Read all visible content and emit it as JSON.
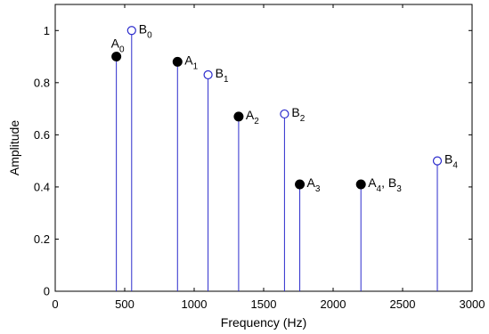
{
  "chart_data": {
    "type": "stem",
    "xlabel": "Frequency (Hz)",
    "ylabel": "Amplitude",
    "xlim": [
      0,
      3000
    ],
    "ylim": [
      0,
      1.1
    ],
    "xticks": [
      0,
      500,
      1000,
      1500,
      2000,
      2500,
      3000
    ],
    "yticks": [
      0,
      0.2,
      0.4,
      0.6,
      0.8,
      1
    ],
    "xtick_labels": [
      "0",
      "500",
      "1000",
      "1500",
      "2000",
      "2500",
      "3000"
    ],
    "ytick_labels": [
      "0",
      "0.2",
      "0.4",
      "0.6",
      "0.8",
      "1"
    ],
    "grid": false,
    "colors": {
      "stem": "#2b2bcc",
      "A_marker": "#000000",
      "B_marker": "#2b2bcc"
    },
    "series": [
      {
        "marker": "filled",
        "points": [
          {
            "x": 440,
            "y": 0.9,
            "label": "A",
            "sub": "0",
            "suffix": ""
          },
          {
            "x": 880,
            "y": 0.88,
            "label": "A",
            "sub": "1",
            "suffix": ""
          },
          {
            "x": 1320,
            "y": 0.67,
            "label": "A",
            "sub": "2",
            "suffix": ""
          },
          {
            "x": 1760,
            "y": 0.41,
            "label": "A",
            "sub": "3",
            "suffix": ""
          },
          {
            "x": 2200,
            "y": 0.41,
            "label": "A",
            "sub": "4",
            "suffix": ", B",
            "suffix_sub": "3"
          }
        ]
      },
      {
        "marker": "open",
        "points": [
          {
            "x": 550,
            "y": 1.0,
            "label": "B",
            "sub": "0",
            "suffix": ""
          },
          {
            "x": 1100,
            "y": 0.83,
            "label": "B",
            "sub": "1",
            "suffix": ""
          },
          {
            "x": 1650,
            "y": 0.68,
            "label": "B",
            "sub": "2",
            "suffix": ""
          },
          {
            "x": 2750,
            "y": 0.5,
            "label": "B",
            "sub": "4",
            "suffix": ""
          }
        ]
      }
    ]
  }
}
